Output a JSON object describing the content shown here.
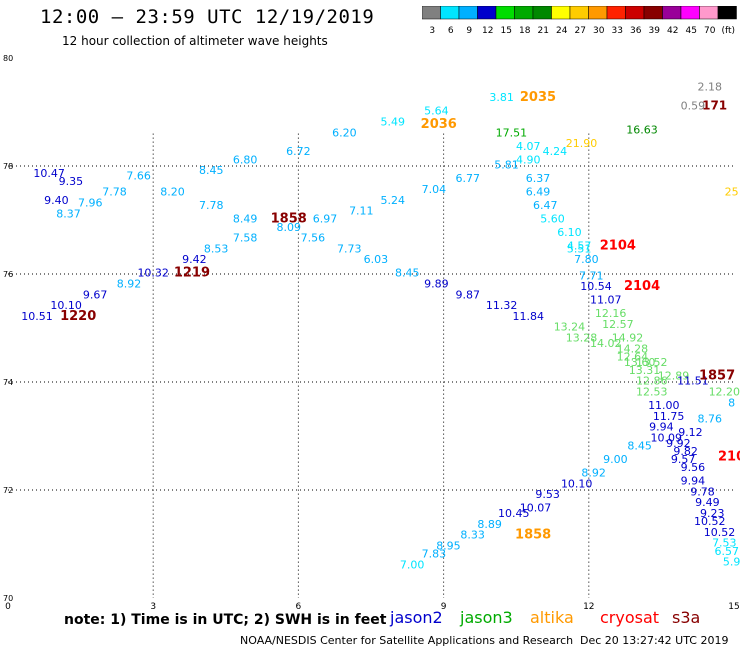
{
  "header": {
    "title": "12:00 – 23:59 UTC 12/19/2019",
    "subtitle": "12 hour collection of altimeter wave heights"
  },
  "color_scale": {
    "labels": [
      "3",
      "6",
      "9",
      "12",
      "15",
      "18",
      "21",
      "24",
      "27",
      "30",
      "33",
      "36",
      "39",
      "42",
      "45",
      "70",
      "(ft)"
    ],
    "colors": [
      "#808080",
      "#00e5ff",
      "#00b0ff",
      "#0000cc",
      "#00dd00",
      "#00aa00",
      "#008800",
      "#ffff00",
      "#ffcc00",
      "#ff9900",
      "#ff2200",
      "#cc0000",
      "#880000",
      "#990099",
      "#ff00ff",
      "#ff99cc",
      "#000000"
    ]
  },
  "footer": {
    "note": "note:  1) Time is in UTC;  2) SWH is in feet",
    "credit": "NOAA/NESDIS Center for Satellite Applications and Research",
    "timestamp": "Dec 20 13:27:42 UTC 2019"
  },
  "legend": [
    {
      "name": "jason2",
      "color": "#0000cc"
    },
    {
      "name": "jason3",
      "color": "#00aa00"
    },
    {
      "name": "altika",
      "color": "#ff9900"
    },
    {
      "name": "cryosat",
      "color": "#ff0000"
    },
    {
      "name": "s3a",
      "color": "#880000"
    }
  ],
  "chart_data": {
    "type": "scatter",
    "title": "12:00 – 23:59 UTC 12/19/2019",
    "subtitle": "12 hour collection of altimeter wave heights",
    "xlabel": "",
    "ylabel": "",
    "xlim": [
      0,
      15
    ],
    "ylim": [
      70,
      80
    ],
    "x_ticks": [
      "0",
      "3",
      "6",
      "9",
      "12",
      "15"
    ],
    "y_ticks": [
      "70",
      "72",
      "74",
      "76",
      "78",
      "80"
    ],
    "grid": true,
    "points": [
      {
        "x": 14.5,
        "y": 79.4,
        "t": "2.18",
        "c": "#808080",
        "fs": 11
      },
      {
        "x": 14.15,
        "y": 79.05,
        "t": "0.59",
        "c": "#808080",
        "fs": 11
      },
      {
        "x": 14.6,
        "y": 79.05,
        "t": "171",
        "c": "#880000",
        "fs": 12,
        "b": 1
      },
      {
        "x": 14.95,
        "y": 77.45,
        "t": "25",
        "c": "#ffcc00",
        "fs": 11
      },
      {
        "x": 0.85,
        "y": 77.8,
        "t": "10.47",
        "c": "#0000cc",
        "fs": 11
      },
      {
        "x": 1.3,
        "y": 77.65,
        "t": "9.35",
        "c": "#0000cc",
        "fs": 11
      },
      {
        "x": 1.0,
        "y": 77.3,
        "t": "9.40",
        "c": "#0000cc",
        "fs": 11
      },
      {
        "x": 1.25,
        "y": 77.05,
        "t": "8.37",
        "c": "#00b0ff",
        "fs": 11
      },
      {
        "x": 1.7,
        "y": 77.25,
        "t": "7.96",
        "c": "#00b0ff",
        "fs": 11
      },
      {
        "x": 2.2,
        "y": 77.45,
        "t": "7.78",
        "c": "#00b0ff",
        "fs": 11
      },
      {
        "x": 2.7,
        "y": 77.75,
        "t": "7.66",
        "c": "#00b0ff",
        "fs": 11
      },
      {
        "x": 3.4,
        "y": 77.45,
        "t": "8.20",
        "c": "#00b0ff",
        "fs": 11
      },
      {
        "x": 4.2,
        "y": 77.85,
        "t": "8.45",
        "c": "#00b0ff",
        "fs": 11
      },
      {
        "x": 4.9,
        "y": 78.05,
        "t": "6.80",
        "c": "#00b0ff",
        "fs": 11
      },
      {
        "x": 6.0,
        "y": 78.2,
        "t": "6.72",
        "c": "#00b0ff",
        "fs": 11
      },
      {
        "x": 6.95,
        "y": 78.55,
        "t": "6.20",
        "c": "#00b0ff",
        "fs": 11
      },
      {
        "x": 7.95,
        "y": 78.75,
        "t": "5.49",
        "c": "#00e5ff",
        "fs": 11
      },
      {
        "x": 8.85,
        "y": 78.95,
        "t": "5.64",
        "c": "#00e5ff",
        "fs": 11
      },
      {
        "x": 8.9,
        "y": 78.7,
        "t": "2036",
        "c": "#ff9900",
        "fs": 13,
        "b": 1
      },
      {
        "x": 10.2,
        "y": 79.2,
        "t": "3.81",
        "c": "#00e5ff",
        "fs": 11
      },
      {
        "x": 10.95,
        "y": 79.2,
        "t": "2035",
        "c": "#ff9900",
        "fs": 13,
        "b": 1
      },
      {
        "x": 10.4,
        "y": 78.55,
        "t": "17.51",
        "c": "#00aa00",
        "fs": 11
      },
      {
        "x": 10.75,
        "y": 78.3,
        "t": "4.07",
        "c": "#00e5ff",
        "fs": 11
      },
      {
        "x": 11.3,
        "y": 78.2,
        "t": "4.24",
        "c": "#00e5ff",
        "fs": 11
      },
      {
        "x": 11.85,
        "y": 78.35,
        "t": "21.90",
        "c": "#ffcc00",
        "fs": 11
      },
      {
        "x": 13.1,
        "y": 78.6,
        "t": "16.63",
        "c": "#008800",
        "fs": 11
      },
      {
        "x": 4.2,
        "y": 77.2,
        "t": "7.78",
        "c": "#00b0ff",
        "fs": 11
      },
      {
        "x": 4.9,
        "y": 76.95,
        "t": "8.49",
        "c": "#00b0ff",
        "fs": 11
      },
      {
        "x": 5.8,
        "y": 76.95,
        "t": "1858",
        "c": "#880000",
        "fs": 13,
        "b": 1
      },
      {
        "x": 5.8,
        "y": 76.8,
        "t": "8.09",
        "c": "#00b0ff",
        "fs": 11
      },
      {
        "x": 6.55,
        "y": 76.95,
        "t": "6.97",
        "c": "#00b0ff",
        "fs": 11
      },
      {
        "x": 7.3,
        "y": 77.1,
        "t": "7.11",
        "c": "#00b0ff",
        "fs": 11
      },
      {
        "x": 7.95,
        "y": 77.3,
        "t": "5.24",
        "c": "#00b0ff",
        "fs": 11
      },
      {
        "x": 8.8,
        "y": 77.5,
        "t": "7.04",
        "c": "#00b0ff",
        "fs": 11
      },
      {
        "x": 9.5,
        "y": 77.7,
        "t": "6.77",
        "c": "#00b0ff",
        "fs": 11
      },
      {
        "x": 10.3,
        "y": 77.95,
        "t": "5.81",
        "c": "#00b0ff",
        "fs": 11
      },
      {
        "x": 10.75,
        "y": 78.05,
        "t": "4.90",
        "c": "#00e5ff",
        "fs": 11
      },
      {
        "x": 10.95,
        "y": 77.7,
        "t": "6.37",
        "c": "#00b0ff",
        "fs": 11
      },
      {
        "x": 10.95,
        "y": 77.45,
        "t": "6.49",
        "c": "#00b0ff",
        "fs": 11
      },
      {
        "x": 11.1,
        "y": 77.2,
        "t": "6.47",
        "c": "#00b0ff",
        "fs": 11
      },
      {
        "x": 11.25,
        "y": 76.95,
        "t": "5.60",
        "c": "#00e5ff",
        "fs": 11
      },
      {
        "x": 11.6,
        "y": 76.7,
        "t": "6.10",
        "c": "#00e5ff",
        "fs": 11
      },
      {
        "x": 11.8,
        "y": 76.45,
        "t": "4.57",
        "c": "#00e5ff",
        "fs": 11
      },
      {
        "x": 11.8,
        "y": 76.4,
        "t": "5.51",
        "c": "#00e5ff",
        "fs": 11
      },
      {
        "x": 12.6,
        "y": 76.45,
        "t": "2104",
        "c": "#ff0000",
        "fs": 13,
        "b": 1
      },
      {
        "x": 11.95,
        "y": 76.2,
        "t": "7.80",
        "c": "#00b0ff",
        "fs": 11
      },
      {
        "x": 12.05,
        "y": 75.9,
        "t": "7.71",
        "c": "#00b0ff",
        "fs": 11
      },
      {
        "x": 12.15,
        "y": 75.7,
        "t": "10.54",
        "c": "#0000cc",
        "fs": 11
      },
      {
        "x": 13.1,
        "y": 75.7,
        "t": "2104",
        "c": "#ff0000",
        "fs": 13,
        "b": 1
      },
      {
        "x": 12.35,
        "y": 75.45,
        "t": "11.07",
        "c": "#0000cc",
        "fs": 11
      },
      {
        "x": 12.45,
        "y": 75.2,
        "t": "12.16",
        "c": "#66dd66",
        "fs": 11
      },
      {
        "x": 12.6,
        "y": 75.0,
        "t": "12.57",
        "c": "#66dd66",
        "fs": 11
      },
      {
        "x": 12.8,
        "y": 74.75,
        "t": "14.92",
        "c": "#66dd66",
        "fs": 11
      },
      {
        "x": 12.9,
        "y": 74.55,
        "t": "14.28",
        "c": "#66dd66",
        "fs": 11
      },
      {
        "x": 12.35,
        "y": 74.65,
        "t": "14.02",
        "c": "#66dd66",
        "fs": 11
      },
      {
        "x": 12.9,
        "y": 74.4,
        "t": "12.64",
        "c": "#66dd66",
        "fs": 11
      },
      {
        "x": 13.05,
        "y": 74.3,
        "t": "13.60",
        "c": "#66dd66",
        "fs": 11
      },
      {
        "x": 13.3,
        "y": 74.3,
        "t": "13.52",
        "c": "#66dd66",
        "fs": 11
      },
      {
        "x": 13.15,
        "y": 74.15,
        "t": "13.31",
        "c": "#66dd66",
        "fs": 11
      },
      {
        "x": 13.75,
        "y": 74.05,
        "t": "12.89",
        "c": "#66dd66",
        "fs": 11
      },
      {
        "x": 13.3,
        "y": 73.95,
        "t": "12.86",
        "c": "#66dd66",
        "fs": 11
      },
      {
        "x": 13.3,
        "y": 73.75,
        "t": "12.53",
        "c": "#66dd66",
        "fs": 11
      },
      {
        "x": 14.15,
        "y": 73.95,
        "t": "11.51",
        "c": "#0000cc",
        "fs": 11
      },
      {
        "x": 14.65,
        "y": 74.05,
        "t": "1857",
        "c": "#880000",
        "fs": 13,
        "b": 1
      },
      {
        "x": 14.8,
        "y": 73.75,
        "t": "12.20",
        "c": "#66dd66",
        "fs": 11
      },
      {
        "x": 14.95,
        "y": 73.55,
        "t": "8",
        "c": "#00b0ff",
        "fs": 11
      },
      {
        "x": 13.55,
        "y": 73.5,
        "t": "11.00",
        "c": "#0000cc",
        "fs": 11
      },
      {
        "x": 13.65,
        "y": 73.3,
        "t": "11.75",
        "c": "#0000cc",
        "fs": 11
      },
      {
        "x": 14.5,
        "y": 73.25,
        "t": "8.76",
        "c": "#00b0ff",
        "fs": 11
      },
      {
        "x": 13.5,
        "y": 73.1,
        "t": "9.94",
        "c": "#0000cc",
        "fs": 11
      },
      {
        "x": 14.1,
        "y": 73.0,
        "t": "9.12",
        "c": "#0000cc",
        "fs": 11
      },
      {
        "x": 13.6,
        "y": 72.9,
        "t": "10.09",
        "c": "#0000cc",
        "fs": 11
      },
      {
        "x": 13.85,
        "y": 72.8,
        "t": "9.92",
        "c": "#0000cc",
        "fs": 11
      },
      {
        "x": 14.0,
        "y": 72.65,
        "t": "9.82",
        "c": "#0000cc",
        "fs": 11
      },
      {
        "x": 14.95,
        "y": 72.55,
        "t": "210",
        "c": "#ff0000",
        "fs": 13,
        "b": 1
      },
      {
        "x": 13.05,
        "y": 72.75,
        "t": "8.45",
        "c": "#00b0ff",
        "fs": 11
      },
      {
        "x": 12.55,
        "y": 72.5,
        "t": "9.00",
        "c": "#00b0ff",
        "fs": 11
      },
      {
        "x": 13.95,
        "y": 72.5,
        "t": "9.57",
        "c": "#0000cc",
        "fs": 11
      },
      {
        "x": 14.15,
        "y": 72.35,
        "t": "9.56",
        "c": "#0000cc",
        "fs": 11
      },
      {
        "x": 12.1,
        "y": 72.25,
        "t": "8.92",
        "c": "#00b0ff",
        "fs": 11
      },
      {
        "x": 11.75,
        "y": 72.05,
        "t": "10.10",
        "c": "#0000cc",
        "fs": 11
      },
      {
        "x": 14.15,
        "y": 72.1,
        "t": "9.94",
        "c": "#0000cc",
        "fs": 11
      },
      {
        "x": 14.35,
        "y": 71.9,
        "t": "9.78",
        "c": "#0000cc",
        "fs": 11
      },
      {
        "x": 11.15,
        "y": 71.85,
        "t": "9.53",
        "c": "#0000cc",
        "fs": 11
      },
      {
        "x": 14.45,
        "y": 71.7,
        "t": "9.49",
        "c": "#0000cc",
        "fs": 11
      },
      {
        "x": 10.9,
        "y": 71.6,
        "t": "10.07",
        "c": "#0000cc",
        "fs": 11
      },
      {
        "x": 10.45,
        "y": 71.5,
        "t": "10.45",
        "c": "#0000cc",
        "fs": 11
      },
      {
        "x": 14.55,
        "y": 71.5,
        "t": "9.23",
        "c": "#0000cc",
        "fs": 11
      },
      {
        "x": 14.5,
        "y": 71.35,
        "t": "10.52",
        "c": "#0000cc",
        "fs": 11
      },
      {
        "x": 9.95,
        "y": 71.3,
        "t": "8.89",
        "c": "#00b0ff",
        "fs": 11
      },
      {
        "x": 14.7,
        "y": 71.15,
        "t": "10.52",
        "c": "#0000cc",
        "fs": 11
      },
      {
        "x": 9.6,
        "y": 71.1,
        "t": "8.33",
        "c": "#00b0ff",
        "fs": 11
      },
      {
        "x": 10.85,
        "y": 71.1,
        "t": "1858",
        "c": "#ff9900",
        "fs": 13,
        "b": 1
      },
      {
        "x": 14.8,
        "y": 70.95,
        "t": "7.53",
        "c": "#00e5ff",
        "fs": 11
      },
      {
        "x": 9.1,
        "y": 70.9,
        "t": "8.95",
        "c": "#00b0ff",
        "fs": 11
      },
      {
        "x": 14.85,
        "y": 70.8,
        "t": "6.57",
        "c": "#00e5ff",
        "fs": 11
      },
      {
        "x": 8.8,
        "y": 70.75,
        "t": "7.83",
        "c": "#00b0ff",
        "fs": 11
      },
      {
        "x": 14.95,
        "y": 70.6,
        "t": "5.9",
        "c": "#00e5ff",
        "fs": 11
      },
      {
        "x": 8.35,
        "y": 70.55,
        "t": "7.00",
        "c": "#00e5ff",
        "fs": 11
      },
      {
        "x": 4.9,
        "y": 76.6,
        "t": "7.58",
        "c": "#00b0ff",
        "fs": 11
      },
      {
        "x": 6.3,
        "y": 76.6,
        "t": "7.56",
        "c": "#00b0ff",
        "fs": 11
      },
      {
        "x": 4.3,
        "y": 76.4,
        "t": "8.53",
        "c": "#00b0ff",
        "fs": 11
      },
      {
        "x": 7.05,
        "y": 76.4,
        "t": "7.73",
        "c": "#00b0ff",
        "fs": 11
      },
      {
        "x": 3.85,
        "y": 76.2,
        "t": "9.42",
        "c": "#0000cc",
        "fs": 11
      },
      {
        "x": 7.6,
        "y": 76.2,
        "t": "6.03",
        "c": "#00b0ff",
        "fs": 11
      },
      {
        "x": 3.0,
        "y": 75.95,
        "t": "10.32",
        "c": "#0000cc",
        "fs": 11
      },
      {
        "x": 3.8,
        "y": 75.95,
        "t": "1219",
        "c": "#880000",
        "fs": 13,
        "b": 1
      },
      {
        "x": 8.25,
        "y": 75.95,
        "t": "8.45",
        "c": "#00b0ff",
        "fs": 11
      },
      {
        "x": 2.5,
        "y": 75.75,
        "t": "8.92",
        "c": "#00b0ff",
        "fs": 11
      },
      {
        "x": 8.85,
        "y": 75.75,
        "t": "9.89",
        "c": "#0000cc",
        "fs": 11
      },
      {
        "x": 1.8,
        "y": 75.55,
        "t": "9.67",
        "c": "#0000cc",
        "fs": 11
      },
      {
        "x": 9.5,
        "y": 75.55,
        "t": "9.87",
        "c": "#0000cc",
        "fs": 11
      },
      {
        "x": 1.2,
        "y": 75.35,
        "t": "10.10",
        "c": "#0000cc",
        "fs": 11
      },
      {
        "x": 10.2,
        "y": 75.35,
        "t": "11.32",
        "c": "#0000cc",
        "fs": 11
      },
      {
        "x": 0.6,
        "y": 75.15,
        "t": "10.51",
        "c": "#0000cc",
        "fs": 11
      },
      {
        "x": 1.45,
        "y": 75.15,
        "t": "1220",
        "c": "#880000",
        "fs": 13,
        "b": 1
      },
      {
        "x": 10.75,
        "y": 75.15,
        "t": "11.84",
        "c": "#0000cc",
        "fs": 11
      },
      {
        "x": 11.6,
        "y": 74.95,
        "t": "13.24",
        "c": "#66dd66",
        "fs": 11
      },
      {
        "x": 11.85,
        "y": 74.75,
        "t": "13.28",
        "c": "#66dd66",
        "fs": 11
      }
    ]
  }
}
